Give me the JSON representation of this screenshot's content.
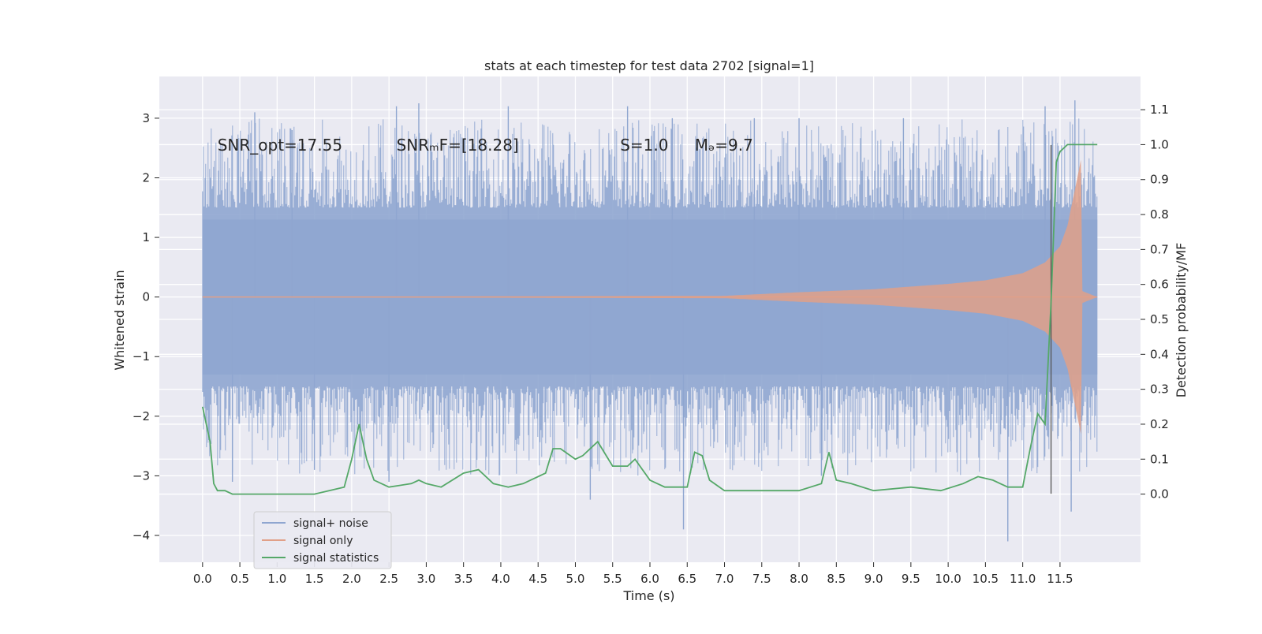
{
  "chart_data": {
    "type": "line",
    "title": "stats at each timestep for test data 2702 [signal=1]",
    "xlabel": "Time (s)",
    "ylabel": "Whitened strain",
    "y2label": "Detection probability/MF",
    "xlim": [
      -0.58,
      12.58
    ],
    "ylim": [
      -4.45,
      3.7
    ],
    "y2lim": [
      -0.195,
      1.195
    ],
    "x_ticks": [
      0.0,
      0.5,
      1.0,
      1.5,
      2.0,
      2.5,
      3.0,
      3.5,
      4.0,
      4.5,
      5.0,
      5.5,
      6.0,
      6.5,
      7.0,
      7.5,
      8.0,
      8.5,
      9.0,
      9.5,
      10.0,
      10.5,
      11.0,
      11.5
    ],
    "x_tick_labels": [
      "0.0",
      "0.5",
      "1.0",
      "1.5",
      "2.0",
      "2.5",
      "3.0",
      "3.5",
      "4.0",
      "4.5",
      "5.0",
      "5.5",
      "6.0",
      "6.5",
      "7.0",
      "7.5",
      "8.0",
      "8.5",
      "9.0",
      "9.5",
      "10.0",
      "10.5",
      "11.0",
      "11.5"
    ],
    "y_ticks": [
      -4,
      -3,
      -2,
      -1,
      0,
      1,
      2,
      3
    ],
    "y_tick_labels": [
      "−4",
      "−3",
      "−2",
      "−1",
      "0",
      "1",
      "2",
      "3"
    ],
    "y2_ticks": [
      0.0,
      0.1,
      0.2,
      0.3,
      0.4,
      0.5,
      0.6,
      0.7,
      0.8,
      0.9,
      1.0,
      1.1
    ],
    "y2_tick_labels": [
      "0.0",
      "0.1",
      "0.2",
      "0.3",
      "0.4",
      "0.5",
      "0.6",
      "0.7",
      "0.8",
      "0.9",
      "1.0",
      "1.1"
    ],
    "grid": true,
    "legend_position": "lower-left",
    "annotations": [
      {
        "text": "SNR_opt=17.55",
        "x": 0.2,
        "y": 2.55
      },
      {
        "text": "SNRₘF=[18.28]",
        "x": 2.6,
        "y": 2.55
      },
      {
        "text": "S=1.0",
        "x": 5.6,
        "y": 2.55
      },
      {
        "text": "Mₔ=9.7",
        "x": 6.6,
        "y": 2.55
      }
    ],
    "vline": {
      "x": 11.38,
      "ymin": -3.3,
      "ymax": 2.55
    },
    "series": [
      {
        "name": "signal+ noise",
        "color": "#8fa6d0",
        "axis": "left",
        "kind": "noise-band",
        "x_range": [
          0.0,
          12.0
        ],
        "core_abs": 1.3,
        "peaks": [
          {
            "x": 0.7,
            "y": 3.1
          },
          {
            "x": 1.2,
            "y": 2.8
          },
          {
            "x": 2.6,
            "y": 3.2
          },
          {
            "x": 2.9,
            "y": 3.25
          },
          {
            "x": 4.1,
            "y": 3.2
          },
          {
            "x": 5.7,
            "y": 3.2
          },
          {
            "x": 6.3,
            "y": 3.0
          },
          {
            "x": 7.4,
            "y": 3.0
          },
          {
            "x": 8.0,
            "y": 3.0
          },
          {
            "x": 9.4,
            "y": 3.0
          },
          {
            "x": 11.3,
            "y": 3.2
          },
          {
            "x": 11.7,
            "y": 3.3
          }
        ],
        "troughs": [
          {
            "x": 0.4,
            "y": -3.1
          },
          {
            "x": 1.5,
            "y": -2.9
          },
          {
            "x": 2.5,
            "y": -3.1
          },
          {
            "x": 5.2,
            "y": -3.4
          },
          {
            "x": 6.45,
            "y": -3.9
          },
          {
            "x": 8.3,
            "y": -3.0
          },
          {
            "x": 10.8,
            "y": -4.1
          },
          {
            "x": 11.65,
            "y": -3.6
          }
        ]
      },
      {
        "name": "signal only",
        "color": "#e1a088",
        "axis": "left",
        "kind": "chirp",
        "x_range": [
          0.0,
          12.0
        ],
        "merger_x": 11.8,
        "envelope": [
          {
            "x": 0.0,
            "a": 0.0
          },
          {
            "x": 7.0,
            "a": 0.02
          },
          {
            "x": 8.0,
            "a": 0.08
          },
          {
            "x": 9.0,
            "a": 0.13
          },
          {
            "x": 10.0,
            "a": 0.22
          },
          {
            "x": 10.5,
            "a": 0.28
          },
          {
            "x": 11.0,
            "a": 0.4
          },
          {
            "x": 11.3,
            "a": 0.58
          },
          {
            "x": 11.5,
            "a": 0.85
          },
          {
            "x": 11.6,
            "a": 1.2
          },
          {
            "x": 11.7,
            "a": 1.8
          },
          {
            "x": 11.78,
            "a": 2.3
          },
          {
            "x": 11.8,
            "a": 0.1
          },
          {
            "x": 12.0,
            "a": 0.0
          }
        ]
      },
      {
        "name": "signal statistics",
        "color": "#55a868",
        "axis": "right",
        "kind": "line",
        "points": [
          [
            0.0,
            0.25
          ],
          [
            0.1,
            0.15
          ],
          [
            0.15,
            0.03
          ],
          [
            0.2,
            0.01
          ],
          [
            0.3,
            0.01
          ],
          [
            0.4,
            0.0
          ],
          [
            0.6,
            0.0
          ],
          [
            1.0,
            0.0
          ],
          [
            1.5,
            0.0
          ],
          [
            1.9,
            0.02
          ],
          [
            2.0,
            0.1
          ],
          [
            2.1,
            0.2
          ],
          [
            2.2,
            0.1
          ],
          [
            2.3,
            0.04
          ],
          [
            2.5,
            0.02
          ],
          [
            2.8,
            0.03
          ],
          [
            2.9,
            0.04
          ],
          [
            3.0,
            0.03
          ],
          [
            3.2,
            0.02
          ],
          [
            3.5,
            0.06
          ],
          [
            3.7,
            0.07
          ],
          [
            3.9,
            0.03
          ],
          [
            4.1,
            0.02
          ],
          [
            4.3,
            0.03
          ],
          [
            4.6,
            0.06
          ],
          [
            4.7,
            0.13
          ],
          [
            4.8,
            0.13
          ],
          [
            5.0,
            0.1
          ],
          [
            5.1,
            0.11
          ],
          [
            5.3,
            0.15
          ],
          [
            5.5,
            0.08
          ],
          [
            5.7,
            0.08
          ],
          [
            5.8,
            0.1
          ],
          [
            6.0,
            0.04
          ],
          [
            6.2,
            0.02
          ],
          [
            6.5,
            0.02
          ],
          [
            6.6,
            0.12
          ],
          [
            6.7,
            0.11
          ],
          [
            6.8,
            0.04
          ],
          [
            7.0,
            0.01
          ],
          [
            7.5,
            0.01
          ],
          [
            8.0,
            0.01
          ],
          [
            8.3,
            0.03
          ],
          [
            8.4,
            0.12
          ],
          [
            8.5,
            0.04
          ],
          [
            8.7,
            0.03
          ],
          [
            9.0,
            0.01
          ],
          [
            9.5,
            0.02
          ],
          [
            9.9,
            0.01
          ],
          [
            10.2,
            0.03
          ],
          [
            10.4,
            0.05
          ],
          [
            10.6,
            0.04
          ],
          [
            10.8,
            0.02
          ],
          [
            11.0,
            0.02
          ],
          [
            11.1,
            0.13
          ],
          [
            11.2,
            0.23
          ],
          [
            11.3,
            0.2
          ],
          [
            11.38,
            0.55
          ],
          [
            11.45,
            0.95
          ],
          [
            11.5,
            0.98
          ],
          [
            11.6,
            1.0
          ],
          [
            11.75,
            1.0
          ],
          [
            12.0,
            1.0
          ]
        ]
      }
    ]
  }
}
